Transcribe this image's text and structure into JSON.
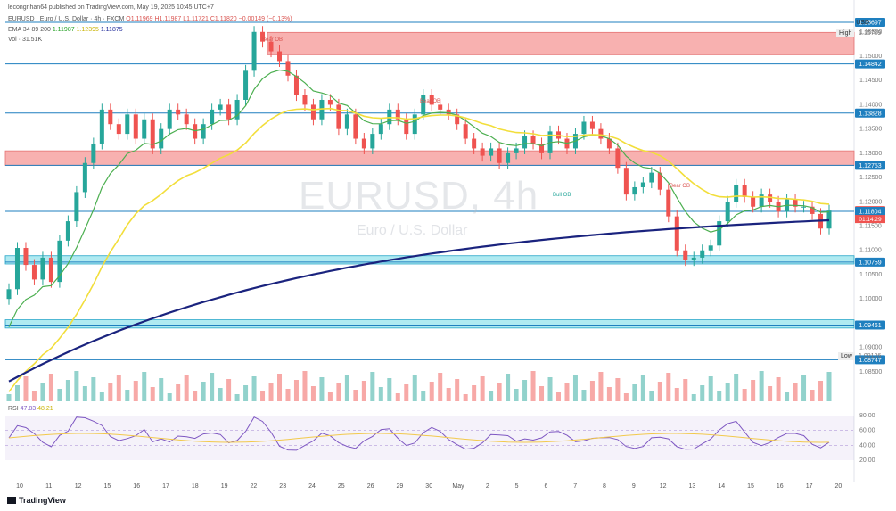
{
  "header": {
    "publisher": "lecongnhan64 published on TradingView.com, May 19, 2025 10:45 UTC+7",
    "symbol_line": "EURUSD · Euro / U.S. Dollar · 4h · FXCM",
    "ohlc": "O1.11969 H1.11987 L1.11721 C1.11820 −0.00149 (−0.13%)",
    "ema_label": "EMA 34 89 200",
    "ema34": "1.11987",
    "ema89": "1.12395",
    "ema200": "1.11875",
    "vol": "Vol · 31.51K"
  },
  "watermark": {
    "symbol": "EURUSD, 4h",
    "name": "Euro / U.S. Dollar"
  },
  "price_axis": {
    "currency": "USD",
    "high_label": "High",
    "high_value": "1.15729",
    "low_label": "Low",
    "low_value": "1.09126",
    "ticks": [
      "1.15500",
      "1.15000",
      "1.14500",
      "1.14000",
      "1.13500",
      "1.13000",
      "1.12500",
      "1.12000",
      "1.11500",
      "1.11000",
      "1.10500",
      "1.10000",
      "1.09500",
      "1.09000",
      "1.08500"
    ],
    "levels": [
      "1.15697",
      "1.14842",
      "1.13828",
      "1.12753",
      "1.11820",
      "1.11804",
      "1.10759",
      "1.09461",
      "1.08747"
    ],
    "countdown": "01:14:29"
  },
  "rsi": {
    "label": "RSI",
    "value": "47.83",
    "ma": "48.21",
    "ticks": [
      "80.00",
      "60.00",
      "40.00",
      "20.00"
    ]
  },
  "time_axis": [
    "10",
    "11",
    "12",
    "15",
    "16",
    "17",
    "18",
    "19",
    "22",
    "23",
    "24",
    "25",
    "26",
    "29",
    "30",
    "May",
    "2",
    "5",
    "6",
    "7",
    "8",
    "9",
    "12",
    "13",
    "14",
    "15",
    "16",
    "17",
    "20"
  ],
  "annotations": {
    "bear_ob_1": "Bear OB",
    "bear_ob_2": "Bear OB",
    "bull_ob": "Bull OB",
    "bear_ob_3": "Bear OB"
  },
  "footer": {
    "brand": "TradingView"
  },
  "colors": {
    "up": "#26a69a",
    "down": "#ef5350",
    "ema34": "#4caf50",
    "ema89": "#ffeb3b",
    "ema200": "#1a237e",
    "level": "#1e7fbf"
  }
}
